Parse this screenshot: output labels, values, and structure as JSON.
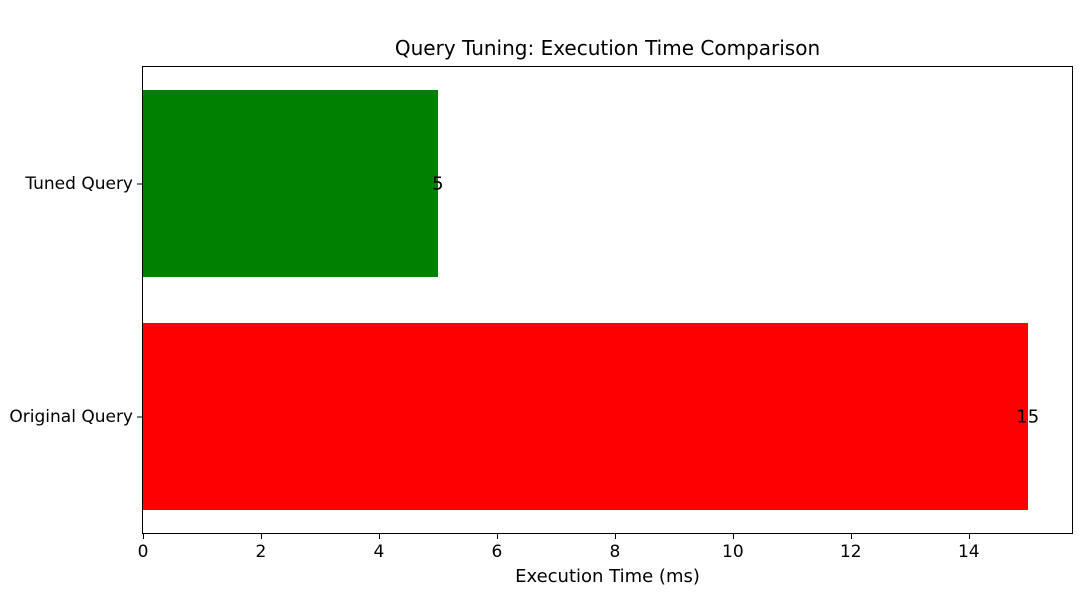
{
  "chart_data": {
    "type": "bar",
    "orientation": "horizontal",
    "title": "Query Tuning: Execution Time Comparison",
    "xlabel": "Execution Time (ms)",
    "ylabel": "",
    "categories": [
      "Tuned Query",
      "Original Query"
    ],
    "values": [
      5,
      15
    ],
    "value_labels": [
      "5",
      "15"
    ],
    "bar_colors": [
      "#008000",
      "#ff0000"
    ],
    "xlim": [
      0,
      15.75
    ],
    "xticks": [
      0,
      2,
      4,
      6,
      8,
      10,
      12,
      14
    ],
    "grid": false,
    "legend": null,
    "background_color": "#ffffff",
    "text_color": "#000000",
    "spine_color": "#000000",
    "bar_height_fraction": 0.8
  }
}
